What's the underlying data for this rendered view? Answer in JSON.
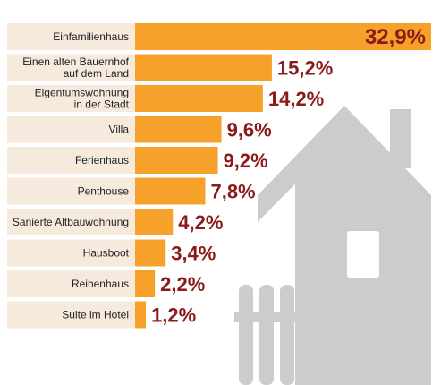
{
  "chart_data": {
    "type": "bar",
    "orientation": "horizontal",
    "categories": [
      "Einfamilienhaus",
      "Einen alten Bauernhof auf dem Land",
      "Eigentumswohnung in der Stadt",
      "Villa",
      "Ferienhaus",
      "Penthouse",
      "Sanierte Altbauwohnung",
      "Hausboot",
      "Reihenhaus",
      "Suite im Hotel"
    ],
    "category_lines": [
      [
        "Einfamilienhaus"
      ],
      [
        "Einen alten Bauernhof",
        "auf dem Land"
      ],
      [
        "Eigentumswohnung",
        "in der Stadt"
      ],
      [
        "Villa"
      ],
      [
        "Ferienhaus"
      ],
      [
        "Penthouse"
      ],
      [
        "Sanierte Altbauwohnung"
      ],
      [
        "Hausboot"
      ],
      [
        "Reihenhaus"
      ],
      [
        "Suite im Hotel"
      ]
    ],
    "values": [
      32.9,
      15.2,
      14.2,
      9.6,
      9.2,
      7.8,
      4.2,
      3.4,
      2.2,
      1.2
    ],
    "value_labels": [
      "32,9%",
      "15,2%",
      "14,2%",
      "9,6%",
      "9,2%",
      "7,8%",
      "4,2%",
      "3,4%",
      "2,2%",
      "1,2%"
    ],
    "xlim": [
      0,
      32.9
    ],
    "grid": false,
    "legend": "none",
    "colors": {
      "bar": "#F5A12A",
      "label_background": "#F6EADD",
      "value_text": "#8B1A1A",
      "house_icon": "#CCCCCC"
    },
    "decoration": "house-icon"
  }
}
